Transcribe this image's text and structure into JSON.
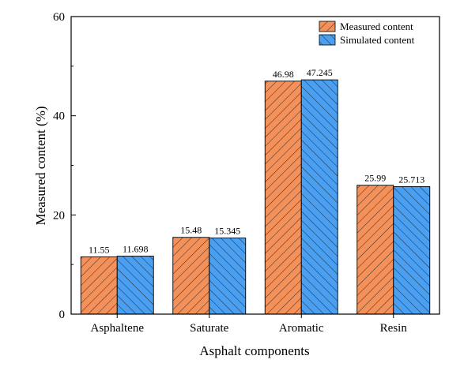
{
  "chart_data": {
    "type": "bar",
    "title": "",
    "xlabel": "Asphalt components",
    "ylabel": "Measured content (%)",
    "categories": [
      "Asphaltene",
      "Saturate",
      "Aromatic",
      "Resin"
    ],
    "series": [
      {
        "name": "Measured content",
        "values": [
          11.55,
          15.48,
          46.98,
          25.99
        ],
        "labels": [
          "11.55",
          "15.48",
          "46.98",
          "25.99"
        ],
        "color": "#F4915A"
      },
      {
        "name": "Simulated content",
        "values": [
          11.698,
          15.345,
          47.245,
          25.713
        ],
        "labels": [
          "11.698",
          "15.345",
          "47.245",
          "25.713"
        ],
        "color": "#4A9FF0"
      }
    ],
    "ylim": [
      0,
      60
    ],
    "yticks": [
      0,
      20,
      40,
      60
    ],
    "ytick_labels": [
      "0",
      "20",
      "40",
      "60"
    ],
    "grid": false,
    "legend_position": "top-right"
  }
}
